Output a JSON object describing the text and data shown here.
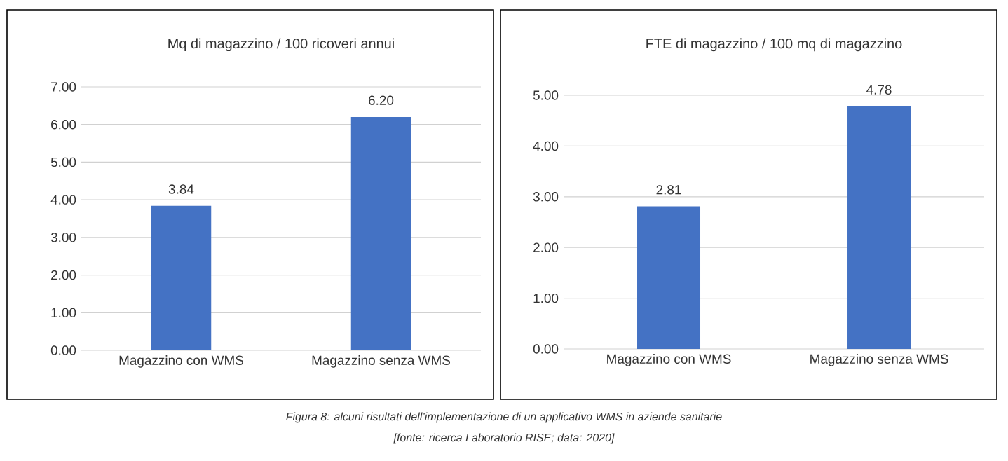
{
  "chart_data": [
    {
      "type": "bar",
      "title": "Mq di magazzino / 100 ricoveri annui",
      "categories": [
        "Magazzino con WMS",
        "Magazzino senza WMS"
      ],
      "values": [
        3.84,
        6.2
      ],
      "value_labels": [
        "3.84",
        "6.20"
      ],
      "color": "#4472c4",
      "ylim": [
        0,
        7
      ],
      "yticks": [
        {
          "value": 0,
          "label": "0.00"
        },
        {
          "value": 1,
          "label": "1.00"
        },
        {
          "value": 2,
          "label": "2.00"
        },
        {
          "value": 3,
          "label": "3.00"
        },
        {
          "value": 4,
          "label": "4.00"
        },
        {
          "value": 5,
          "label": "5.00"
        },
        {
          "value": 6,
          "label": "6.00"
        },
        {
          "value": 7,
          "label": "7.00"
        }
      ],
      "grid": "y",
      "annotations": [
        "Figura 8: alcuni risultati dell’implementazione di un applicativo WMS in aziende sanitarie",
        "[fonte: ricerca Laboratorio RISE; data: 2020]"
      ]
    },
    {
      "type": "bar",
      "title": "FTE di magazzino / 100 mq di magazzino",
      "categories": [
        "Magazzino con WMS",
        "Magazzino senza WMS"
      ],
      "values": [
        2.81,
        4.78
      ],
      "value_labels": [
        "2.81",
        "4.78"
      ],
      "color": "#4472c4",
      "ylim": [
        0,
        5
      ],
      "yticks": [
        {
          "value": 0,
          "label": "0.00"
        },
        {
          "value": 1,
          "label": "1.00"
        },
        {
          "value": 2,
          "label": "2.00"
        },
        {
          "value": 3,
          "label": "3.00"
        },
        {
          "value": 4,
          "label": "4.00"
        },
        {
          "value": 5,
          "label": "5.00"
        }
      ],
      "grid": "y"
    }
  ]
}
